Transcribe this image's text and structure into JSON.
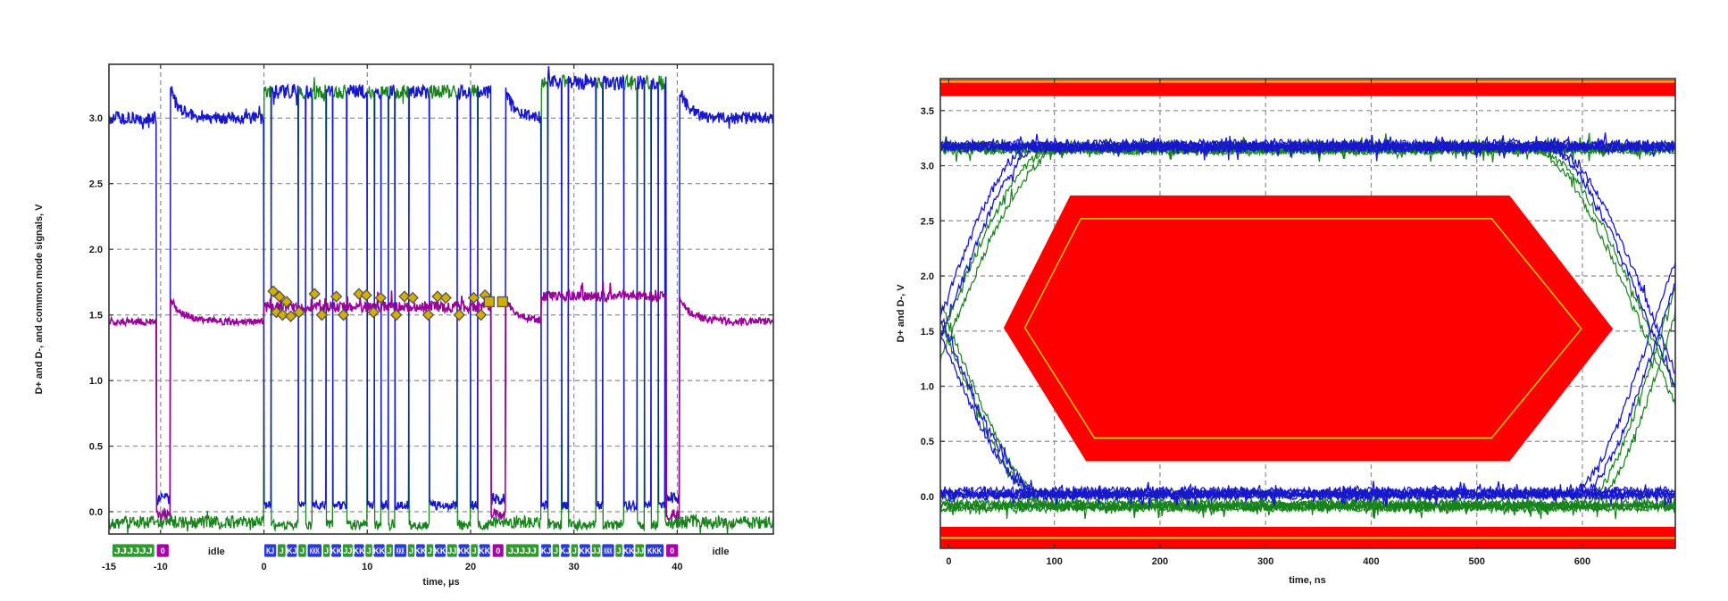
{
  "chart_data": [
    {
      "id": "usb-packet-waveform",
      "type": "line",
      "xlabel": "time, µs",
      "ylabel": "D+ and D-, and common mode signals, V",
      "x_range": [
        -15,
        49.3
      ],
      "y_range": [
        -0.17,
        3.41
      ],
      "x_ticks": [
        "-15",
        "-10",
        "0",
        "10",
        "20",
        "30",
        "40"
      ],
      "x_tick_values": [
        -15,
        -10,
        0,
        10,
        20,
        30,
        40
      ],
      "y_ticks": [
        "0.0",
        "0.5",
        "1.0",
        "1.5",
        "2.0",
        "2.5",
        "3.0"
      ],
      "y_tick_values": [
        0,
        0.5,
        1,
        1.5,
        2,
        2.5,
        3
      ],
      "grid_x": [
        -10,
        0,
        10,
        20,
        30,
        40
      ],
      "grid_y": [
        0,
        0.5,
        1,
        1.5,
        2,
        2.5,
        3
      ],
      "grid_on": true,
      "series": [
        {
          "name": "D+",
          "color": "#1717cc",
          "idle_level": 3.0,
          "burst_high_1": 3.2,
          "burst_high_2": 3.27,
          "burst_low": 0.05,
          "se0_level": 0.1
        },
        {
          "name": "D-",
          "color": "#17821b",
          "idle_level": -0.08,
          "burst_high_1": 3.2,
          "burst_high_2": 3.27,
          "burst_low": -0.1,
          "se0_level": -0.08
        },
        {
          "name": "common mode",
          "color": "#990099",
          "idle_level": 1.45,
          "burst_level_1": 1.56,
          "burst_level_2": 1.64,
          "se0_level": -0.02
        }
      ],
      "bit_period_us": 0.667,
      "bursts": [
        [
          0,
          22.0
        ],
        [
          26.8,
          38.9
        ]
      ],
      "se0_events": [
        [
          -10.4,
          -9.05
        ],
        [
          22.0,
          23.35
        ],
        [
          38.9,
          40.2
        ]
      ],
      "overshoot": {
        "amplitude": 0.23,
        "tau_us": 0.85,
        "cm_amplitude": 0.17,
        "cm_tau_us": 1.2
      },
      "markers": {
        "fill": "#d2ae00",
        "stroke": "#555555",
        "diamonds": [
          [
            0.9,
            1.68
          ],
          [
            1.2,
            1.52
          ],
          [
            1.5,
            1.64
          ],
          [
            1.8,
            1.5
          ],
          [
            2.2,
            1.6
          ],
          [
            2.6,
            1.49
          ],
          [
            3.4,
            1.52
          ],
          [
            4.9,
            1.66
          ],
          [
            5.6,
            1.5
          ],
          [
            7.0,
            1.64
          ],
          [
            7.7,
            1.5
          ],
          [
            9.2,
            1.66
          ],
          [
            9.9,
            1.65
          ],
          [
            10.6,
            1.52
          ],
          [
            11.3,
            1.63
          ],
          [
            12.8,
            1.5
          ],
          [
            13.6,
            1.64
          ],
          [
            14.4,
            1.63
          ],
          [
            15.9,
            1.5
          ],
          [
            16.8,
            1.64
          ],
          [
            17.6,
            1.63
          ],
          [
            18.9,
            1.5
          ],
          [
            20.3,
            1.63
          ],
          [
            21.0,
            1.5
          ],
          [
            21.4,
            1.65
          ]
        ],
        "squares": [
          [
            21.8,
            1.6
          ],
          [
            23.1,
            1.6
          ]
        ]
      },
      "state_strip": {
        "idle_labels": [
          {
            "text": "idle",
            "t": -4.6
          },
          {
            "text": "idle",
            "t": 44.2
          }
        ],
        "colors": {
          "J": "#2f9b2f",
          "K": "#2b3bd6",
          "SE0": "#a800a8",
          "text": "#ffffff"
        },
        "boxes": [
          {
            "kind": "J",
            "label": "JJJJJ",
            "t0": -14.7,
            "t1": -10.5
          },
          {
            "kind": "SE0",
            "label": "0",
            "t0": -10.4,
            "t1": -9.1
          },
          {
            "kind": "K",
            "label": "KJ",
            "t0": 0.0,
            "t1": 1.3
          },
          {
            "kind": "J",
            "label": "J",
            "t0": 1.3,
            "t1": 2.2
          },
          {
            "kind": "K",
            "label": "KJ",
            "t0": 2.2,
            "t1": 3.3
          },
          {
            "kind": "J",
            "label": "J",
            "t0": 3.3,
            "t1": 4.2
          },
          {
            "kind": "K",
            "label": "KKK",
            "t0": 4.2,
            "t1": 5.7
          },
          {
            "kind": "J",
            "label": "J",
            "t0": 5.7,
            "t1": 6.5
          },
          {
            "kind": "K",
            "label": "KK",
            "t0": 6.5,
            "t1": 7.6
          },
          {
            "kind": "J",
            "label": "JJ",
            "t0": 7.6,
            "t1": 8.7
          },
          {
            "kind": "K",
            "label": "KK",
            "t0": 8.7,
            "t1": 9.8
          },
          {
            "kind": "J",
            "label": "J",
            "t0": 9.8,
            "t1": 10.6
          },
          {
            "kind": "K",
            "label": "KK",
            "t0": 10.6,
            "t1": 11.8
          },
          {
            "kind": "J",
            "label": "J",
            "t0": 11.8,
            "t1": 12.6
          },
          {
            "kind": "K",
            "label": "KKK",
            "t0": 12.6,
            "t1": 13.9
          },
          {
            "kind": "J",
            "label": "J",
            "t0": 13.9,
            "t1": 14.7
          },
          {
            "kind": "K",
            "label": "KK",
            "t0": 14.7,
            "t1": 15.7
          },
          {
            "kind": "J",
            "label": "J",
            "t0": 15.7,
            "t1": 16.5
          },
          {
            "kind": "K",
            "label": "KK",
            "t0": 16.5,
            "t1": 17.7
          },
          {
            "kind": "J",
            "label": "JJ",
            "t0": 17.7,
            "t1": 18.8
          },
          {
            "kind": "K",
            "label": "KK",
            "t0": 18.8,
            "t1": 20.0
          },
          {
            "kind": "J",
            "label": "J",
            "t0": 20.0,
            "t1": 20.8
          },
          {
            "kind": "K",
            "label": "KK",
            "t0": 20.8,
            "t1": 22.0
          },
          {
            "kind": "SE0",
            "label": "0",
            "t0": 22.1,
            "t1": 23.3
          },
          {
            "kind": "J",
            "label": "JJJJJ",
            "t0": 23.4,
            "t1": 26.7
          },
          {
            "kind": "K",
            "label": "KJ",
            "t0": 26.8,
            "t1": 27.9
          },
          {
            "kind": "J",
            "label": "J",
            "t0": 27.9,
            "t1": 28.7
          },
          {
            "kind": "K",
            "label": "KJ",
            "t0": 28.7,
            "t1": 29.7
          },
          {
            "kind": "J",
            "label": "J",
            "t0": 29.7,
            "t1": 30.5
          },
          {
            "kind": "K",
            "label": "KK",
            "t0": 30.5,
            "t1": 31.7
          },
          {
            "kind": "J",
            "label": "JJ",
            "t0": 31.7,
            "t1": 32.7
          },
          {
            "kind": "K",
            "label": "KKK",
            "t0": 32.7,
            "t1": 34.0
          },
          {
            "kind": "J",
            "label": "J",
            "t0": 34.0,
            "t1": 34.8
          },
          {
            "kind": "K",
            "label": "KK",
            "t0": 34.8,
            "t1": 35.9
          },
          {
            "kind": "J",
            "label": "JJ",
            "t0": 35.9,
            "t1": 36.9
          },
          {
            "kind": "K",
            "label": "KKK",
            "t0": 36.9,
            "t1": 38.8
          },
          {
            "kind": "SE0",
            "label": "0",
            "t0": 38.9,
            "t1": 40.2
          }
        ]
      }
    },
    {
      "id": "usb-eye-diagram",
      "type": "line",
      "xlabel": "time, ns",
      "ylabel": "D+ and D-, V",
      "x_range": [
        -8,
        688
      ],
      "y_range": [
        -0.47,
        3.79
      ],
      "x_ticks": [
        "0",
        "100",
        "200",
        "300",
        "400",
        "500",
        "600"
      ],
      "x_tick_values": [
        0,
        100,
        200,
        300,
        400,
        500,
        600
      ],
      "y_ticks": [
        "0.0",
        "0.5",
        "1.0",
        "1.5",
        "2.0",
        "2.5",
        "3.0",
        "3.5"
      ],
      "y_tick_values": [
        0,
        0.5,
        1,
        1.5,
        2,
        2.5,
        3,
        3.5
      ],
      "grid_x": [
        100,
        200,
        300,
        400,
        500,
        600
      ],
      "grid_y": [
        0,
        0.5,
        1,
        1.5,
        2,
        2.5,
        3,
        3.5
      ],
      "grid_on": true,
      "bit_period_ns": 667,
      "series": [
        {
          "name": "D+",
          "color": "#1717cc",
          "high": 3.17,
          "low": 0.02
        },
        {
          "name": "D-",
          "color": "#17821b",
          "high": 3.15,
          "low": -0.09
        }
      ],
      "mask": {
        "fill": "#ff0000",
        "outer_hexagon": [
          [
            52,
            1.53
          ],
          [
            115,
            2.73
          ],
          [
            531,
            2.73
          ],
          [
            629,
            1.52
          ],
          [
            531,
            0.32
          ],
          [
            130,
            0.32
          ]
        ],
        "inner_line_color": "#ffd700",
        "inner_hexagon": [
          [
            72,
            1.53
          ],
          [
            125,
            2.52
          ],
          [
            514,
            2.52
          ],
          [
            599,
            1.52
          ],
          [
            514,
            0.53
          ],
          [
            138,
            0.53
          ]
        ]
      },
      "limit_bands": {
        "fill": "#ff0000",
        "line_color": "#ffd700",
        "top": {
          "v0": 3.63,
          "v1": 3.78,
          "line_v": 3.762
        },
        "bottom": {
          "v0": -0.465,
          "v1": -0.275,
          "line_v": -0.375
        }
      }
    }
  ]
}
